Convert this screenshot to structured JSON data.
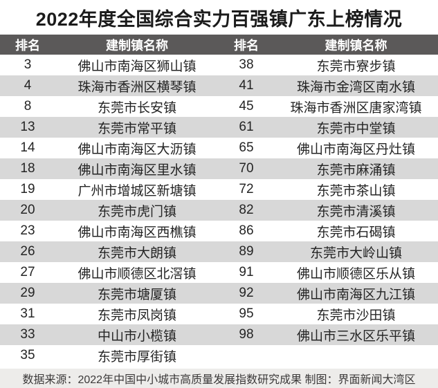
{
  "title": "2022年度全国综合实力百强镇广东上榜情况",
  "header": {
    "rank_left": "排名",
    "name_left": "建制镇名称",
    "rank_right": "排名",
    "name_right": "建制镇名称"
  },
  "footer": "数据来源：2022年中国中小城市高质量发展指数研究成果 制图：界面新闻大湾区",
  "colors": {
    "title_text": "#1b1b1b",
    "header_bg": "#5b5959",
    "header_text": "#ffffff",
    "row_white": "#ffffff",
    "row_stripe": "#d8d8d8",
    "footer_bg": "#edecea",
    "footer_text": "#3c3a3a"
  },
  "chart_data": {
    "type": "table",
    "title": "2022年度全国综合实力百强镇广东上榜情况",
    "columns": [
      "排名",
      "建制镇名称",
      "排名",
      "建制镇名称"
    ],
    "rows": [
      [
        "3",
        "佛山市南海区狮山镇",
        "38",
        "东莞市寮步镇"
      ],
      [
        "4",
        "珠海市香洲区横琴镇",
        "41",
        "珠海市金湾区南水镇"
      ],
      [
        "8",
        "东莞市长安镇",
        "45",
        "珠海市香洲区唐家湾镇"
      ],
      [
        "13",
        "东莞市常平镇",
        "61",
        "东莞市中堂镇"
      ],
      [
        "14",
        "佛山市南海区大沥镇",
        "65",
        "佛山市南海区丹灶镇"
      ],
      [
        "18",
        "佛山市南海区里水镇",
        "70",
        "东莞市麻涌镇"
      ],
      [
        "19",
        "广州市增城区新塘镇",
        "72",
        "东莞市茶山镇"
      ],
      [
        "20",
        "东莞市虎门镇",
        "82",
        "东莞市清溪镇"
      ],
      [
        "23",
        "佛山市南海区西樵镇",
        "86",
        "东莞市石碣镇"
      ],
      [
        "26",
        "东莞市大朗镇",
        "89",
        "东莞市大岭山镇"
      ],
      [
        "27",
        "佛山市顺德区北滘镇",
        "91",
        "佛山市顺德区乐从镇"
      ],
      [
        "29",
        "东莞市塘厦镇",
        "92",
        "佛山市南海区九江镇"
      ],
      [
        "31",
        "东莞市凤岗镇",
        "95",
        "东莞市沙田镇"
      ],
      [
        "33",
        "中山市小榄镇",
        "98",
        "佛山市三水区乐平镇"
      ],
      [
        "35",
        "东莞市厚街镇",
        "",
        ""
      ]
    ],
    "footer": "数据来源：2022年中国中小城市高质量发展指数研究成果 制图：界面新闻大湾区",
    "layout": {
      "stripe_pattern": "alternating white/gray starting white",
      "columns_halves": 2,
      "rows_count": 15
    }
  }
}
